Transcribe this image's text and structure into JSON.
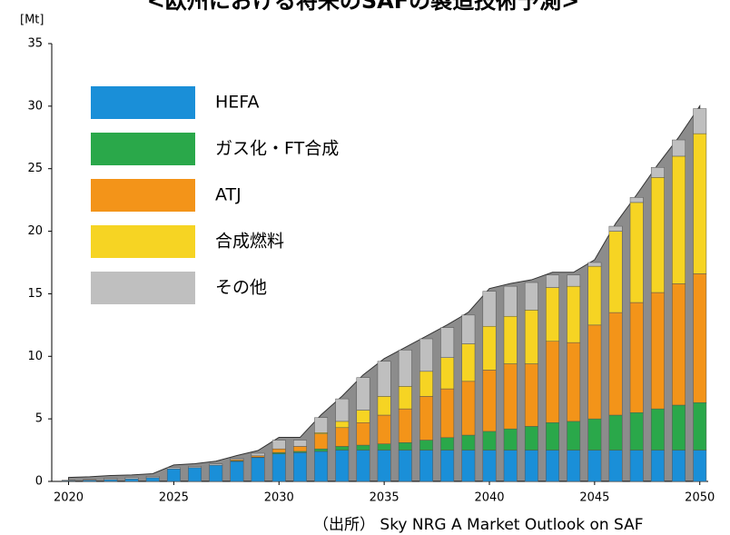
{
  "chart_data": {
    "type": "stacked-bar",
    "title": "<欧州における将来のSAFの製造技術予測>",
    "y_label": "[Mt]",
    "source": "（出所） Sky NRG  A Market Outlook on SAF",
    "x": [
      2020,
      2021,
      2022,
      2023,
      2024,
      2025,
      2026,
      2027,
      2028,
      2029,
      2030,
      2031,
      2032,
      2033,
      2034,
      2035,
      2036,
      2037,
      2038,
      2039,
      2040,
      2041,
      2042,
      2043,
      2044,
      2045,
      2046,
      2047,
      2048,
      2049,
      2050
    ],
    "xlim": [
      2019.2,
      2050.4
    ],
    "xticks": [
      2020,
      2025,
      2030,
      2035,
      2040,
      2045,
      2050
    ],
    "ylim": [
      0,
      35
    ],
    "yticks": [
      0,
      5,
      10,
      15,
      20,
      25,
      30,
      35
    ],
    "series": [
      {
        "name": "HEFA",
        "color": "#1a8fd8",
        "values": [
          0.05,
          0.1,
          0.15,
          0.2,
          0.3,
          1.0,
          1.1,
          1.3,
          1.6,
          1.9,
          2.2,
          2.3,
          2.4,
          2.5,
          2.5,
          2.5,
          2.5,
          2.5,
          2.5,
          2.5,
          2.5,
          2.5,
          2.5,
          2.5,
          2.5,
          2.5,
          2.5,
          2.5,
          2.5,
          2.5,
          2.5
        ]
      },
      {
        "name": "ガス化・FT合成",
        "color": "#2aa84a",
        "values": [
          0,
          0,
          0,
          0,
          0,
          0,
          0,
          0,
          0.05,
          0.05,
          0.1,
          0.1,
          0.2,
          0.3,
          0.4,
          0.5,
          0.6,
          0.8,
          1.0,
          1.2,
          1.5,
          1.7,
          1.9,
          2.2,
          2.3,
          2.5,
          2.8,
          3.0,
          3.3,
          3.6,
          3.8
        ]
      },
      {
        "name": "ATJ",
        "color": "#f39419",
        "values": [
          0,
          0,
          0,
          0,
          0,
          0,
          0,
          0,
          0.1,
          0.1,
          0.3,
          0.4,
          1.2,
          1.5,
          1.8,
          2.3,
          2.7,
          3.5,
          3.9,
          4.3,
          4.9,
          5.2,
          5.0,
          6.5,
          6.3,
          7.5,
          8.2,
          8.8,
          9.3,
          9.7,
          10.3
        ]
      },
      {
        "name": "合成燃料",
        "color": "#f6d423",
        "values": [
          0,
          0,
          0,
          0,
          0,
          0,
          0,
          0,
          0,
          0,
          0,
          0,
          0.1,
          0.5,
          1.0,
          1.5,
          1.8,
          2.0,
          2.5,
          3.0,
          3.5,
          3.8,
          4.3,
          4.3,
          4.5,
          4.7,
          6.5,
          8.0,
          9.2,
          10.2,
          11.2
        ]
      },
      {
        "name": "その他",
        "color": "#bfbfbf",
        "values": [
          0.05,
          0.05,
          0.1,
          0.1,
          0.1,
          0.1,
          0.1,
          0.1,
          0.1,
          0.2,
          0.7,
          0.5,
          1.2,
          1.8,
          2.6,
          2.8,
          2.9,
          2.6,
          2.4,
          2.3,
          2.8,
          2.4,
          2.2,
          1.0,
          0.9,
          0.3,
          0.4,
          0.4,
          0.8,
          1.3,
          2.0
        ]
      }
    ]
  }
}
